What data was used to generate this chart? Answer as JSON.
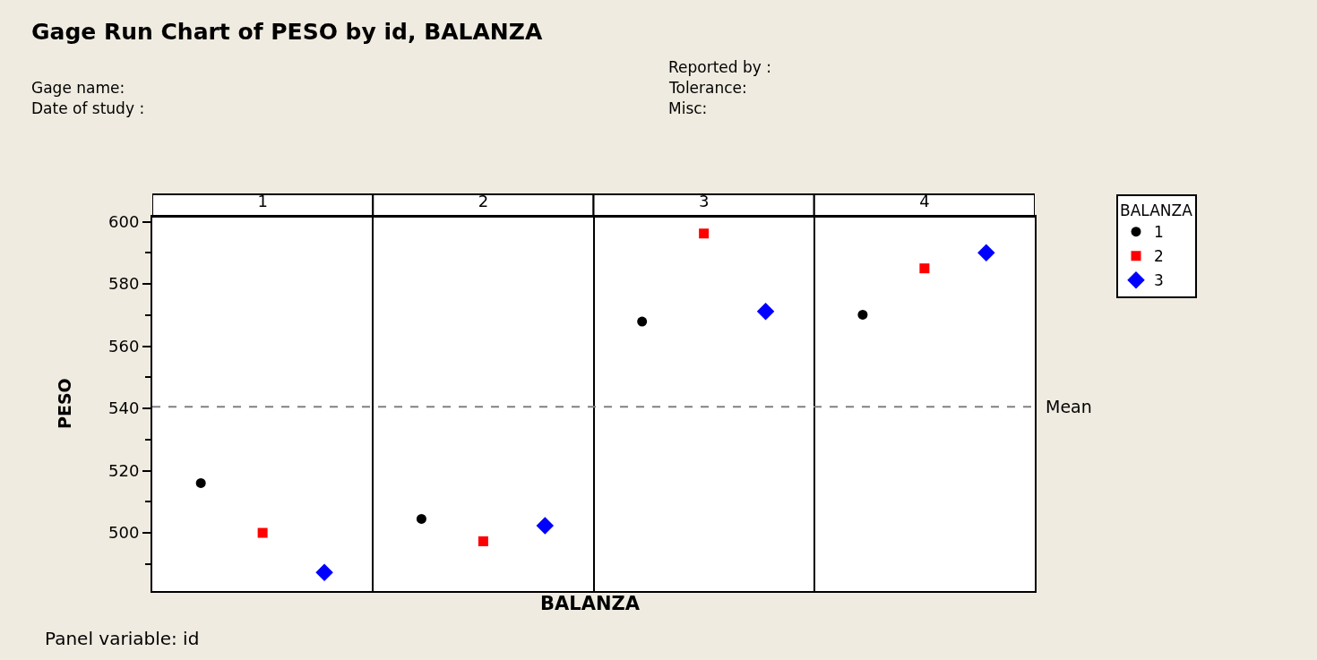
{
  "chart_data": {
    "type": "scatter",
    "title": "Gage Run Chart of PESO by id, BALANZA",
    "xlabel": "BALANZA",
    "ylabel": "PESO",
    "legend_title": "BALANZA",
    "legend": "top right",
    "grid": "x",
    "categories": [
      "1",
      "2",
      "3",
      "4"
    ],
    "series": [
      {
        "name": "1",
        "color": "#000000",
        "marker": "circle",
        "values": [
          516.0,
          504.5,
          567.9,
          570.1
        ]
      },
      {
        "name": "2",
        "color": "#ff0000",
        "marker": "square",
        "values": [
          500.0,
          497.3,
          596.2,
          585.0
        ]
      },
      {
        "name": "3",
        "color": "#0000ff",
        "marker": "diamond",
        "values": [
          487.3,
          502.3,
          571.2,
          590.0
        ]
      }
    ],
    "ylim": [
      481.3,
      601.6
    ],
    "yticks": [
      {
        "value": 490,
        "label": null
      },
      500,
      {
        "value": 510,
        "label": null
      },
      520,
      {
        "value": 530,
        "label": null
      },
      540,
      {
        "value": 550,
        "label": null
      },
      560,
      {
        "value": 570,
        "label": null
      },
      580,
      {
        "value": 590,
        "label": null
      },
      600
    ],
    "ref_lines": [
      {
        "axis": "y",
        "value": 540.5,
        "label": "Mean",
        "color": "#808080",
        "line_style": "dashed"
      }
    ],
    "annotations": [
      "Gage name:",
      "Date of study :",
      "Reported by :",
      "Tolerance:",
      "Misc:",
      "Panel variable: id"
    ]
  }
}
